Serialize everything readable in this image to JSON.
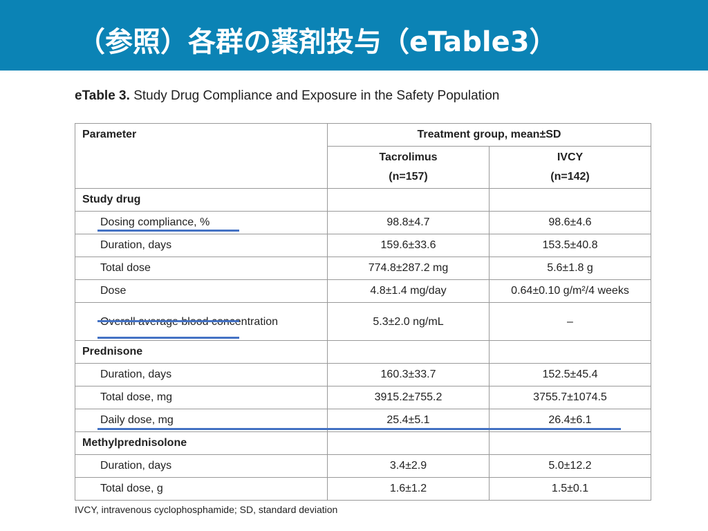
{
  "header": {
    "title": "（参照）各群の薬剤投与（eTable3）"
  },
  "table": {
    "caption_label": "eTable 3.",
    "caption": "Study Drug Compliance and Exposure in the Safety Population",
    "columns": [
      "Parameter",
      "Treatment group, mean±SD"
    ],
    "groups": [
      {
        "name": "Tacrolimus",
        "n": "(n=157)"
      },
      {
        "name": "IVCY",
        "n": "(n=142)"
      }
    ],
    "sections": [
      {
        "title": "Study drug",
        "rows": [
          [
            "Dosing compliance, %",
            "98.8±4.7",
            "98.6±4.6"
          ],
          [
            "Duration, days",
            "159.6±33.6",
            "153.5±40.8"
          ],
          [
            "Total dose",
            "774.8±287.2 mg",
            "5.6±1.8 g"
          ],
          [
            "Dose",
            "4.8±1.4 mg/day",
            "0.64±0.10 g/m²/4 weeks"
          ],
          [
            "Overall average blood concentration",
            "5.3±2.0 ng/mL",
            "–"
          ]
        ]
      },
      {
        "title": "Prednisone",
        "rows": [
          [
            "Duration, days",
            "160.3±33.7",
            "152.5±45.4"
          ],
          [
            "Total dose, mg",
            "3915.2±755.2",
            "3755.7±1074.5"
          ],
          [
            "Daily dose, mg",
            "25.4±5.1",
            "26.4±6.1"
          ]
        ]
      },
      {
        "title": "Methylprednisolone",
        "rows": [
          [
            "Duration, days",
            "3.4±2.9",
            "5.0±12.2"
          ],
          [
            "Total dose, g",
            "1.6±1.2",
            "1.5±0.1"
          ]
        ]
      }
    ],
    "footnote": "IVCY, intravenous cyclophosphamide; SD, standard deviation"
  }
}
